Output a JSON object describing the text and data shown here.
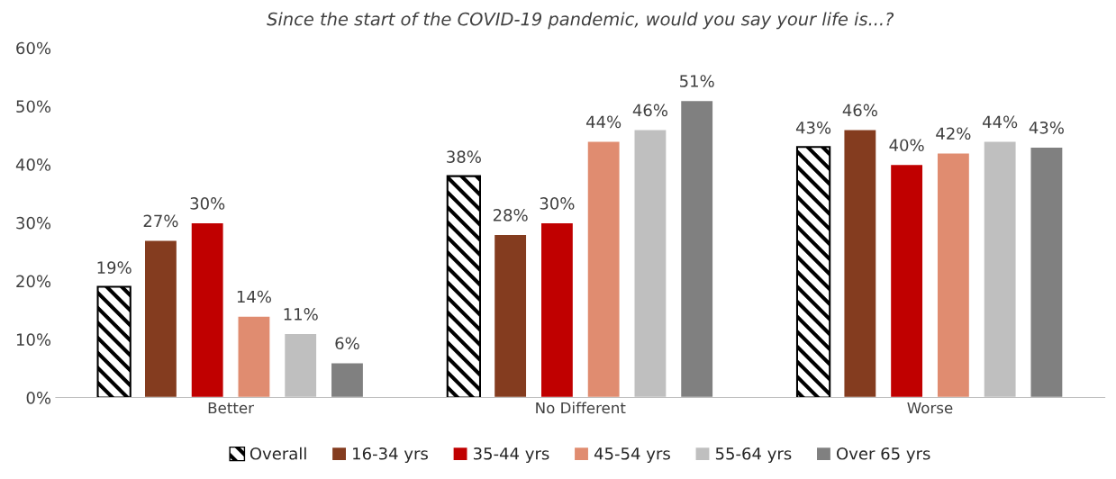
{
  "chart_data": {
    "type": "bar",
    "title": "Since the start of the COVID-19 pandemic, would you say your life is...?",
    "categories": [
      "Better",
      "No Different",
      "Worse"
    ],
    "series": [
      {
        "name": "Overall",
        "color": "#000000",
        "values": [
          19,
          38,
          43
        ],
        "value_labels": [
          "19%",
          "38%",
          "43%"
        ]
      },
      {
        "name": "16-34 yrs",
        "color": "#843c1f",
        "values": [
          27,
          28,
          46
        ],
        "value_labels": [
          "27%",
          "28%",
          "46%"
        ]
      },
      {
        "name": "35-44 yrs",
        "color": "#c00000",
        "values": [
          30,
          30,
          40
        ],
        "value_labels": [
          "30%",
          "30%",
          "40%"
        ]
      },
      {
        "name": "45-54 yrs",
        "color": "#e08c70",
        "values": [
          14,
          44,
          42
        ],
        "value_labels": [
          "14%",
          "44%",
          "42%"
        ]
      },
      {
        "name": "55-64 yrs",
        "color": "#bfbfbf",
        "values": [
          11,
          46,
          44
        ],
        "value_labels": [
          "11%",
          "46%",
          "44%"
        ]
      },
      {
        "name": "Over 65 yrs",
        "color": "#808080",
        "values": [
          6,
          51,
          43
        ],
        "value_labels": [
          "6%",
          "51%",
          "43%"
        ]
      }
    ],
    "ylim": [
      0,
      60
    ],
    "yticks": [
      {
        "value": 0,
        "label": "0%"
      },
      {
        "value": 10,
        "label": "10%"
      },
      {
        "value": 20,
        "label": "20%"
      },
      {
        "value": 30,
        "label": "30%"
      },
      {
        "value": 40,
        "label": "40%"
      },
      {
        "value": 50,
        "label": "50%"
      },
      {
        "value": 60,
        "label": "60%"
      }
    ],
    "grid": false,
    "legend": "bottom"
  }
}
